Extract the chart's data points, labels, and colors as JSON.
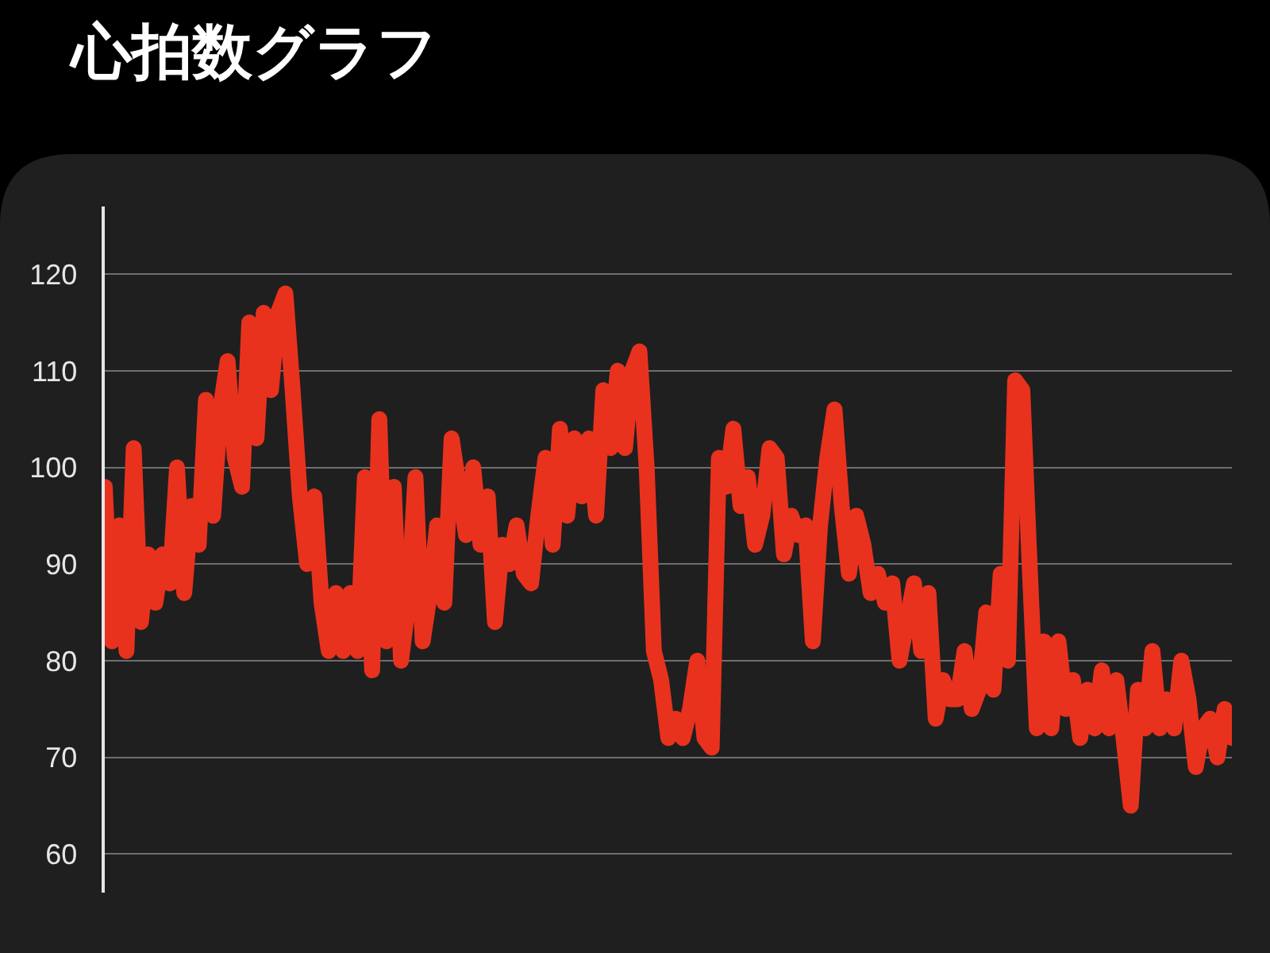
{
  "chart_data": {
    "type": "line",
    "title": "心拍数グラフ",
    "categories": [
      null,
      null,
      null,
      null,
      null,
      null,
      null,
      null,
      null,
      null,
      null,
      null,
      null,
      null,
      null,
      null,
      null,
      null,
      null,
      null,
      null,
      null,
      null,
      null,
      null,
      null,
      null,
      null,
      null,
      null,
      null,
      null,
      null,
      null,
      null,
      null,
      null,
      null,
      null,
      null,
      null,
      null,
      null,
      null,
      null,
      null,
      null,
      null,
      null,
      null,
      null,
      null,
      null,
      null,
      null,
      null,
      null,
      null,
      null,
      null,
      null,
      null,
      null,
      null,
      null,
      null,
      null,
      null,
      null,
      null,
      null,
      null,
      null,
      null,
      null,
      null,
      null,
      null,
      null,
      null,
      null,
      null,
      null,
      null,
      null,
      null,
      null,
      null,
      null,
      null,
      null,
      null,
      null,
      null,
      null,
      null,
      null,
      null,
      null,
      null,
      null,
      null,
      null,
      null,
      null,
      null,
      null,
      null,
      null,
      null,
      null,
      null,
      null,
      null,
      null,
      null,
      null,
      null,
      null,
      null,
      null,
      null,
      null,
      null,
      null,
      null,
      null,
      null,
      null,
      null,
      null,
      null,
      null,
      null,
      null,
      null,
      null,
      null,
      null,
      null,
      null,
      null,
      null,
      null,
      null,
      null,
      null,
      null,
      null,
      null,
      null,
      null,
      null,
      null,
      null,
      null,
      null
    ],
    "series": [
      {
        "color": "#e8321e",
        "values": [
          98,
          82,
          94,
          81,
          102,
          84,
          91,
          86,
          91,
          88,
          100,
          87,
          96,
          92,
          107,
          95,
          106,
          111,
          101,
          98,
          115,
          103,
          116,
          108,
          116,
          118,
          108,
          97,
          90,
          97,
          86,
          81,
          87,
          81,
          87,
          81,
          99,
          79,
          105,
          82,
          98,
          80,
          86,
          99,
          82,
          87,
          94,
          86,
          103,
          98,
          93,
          100,
          92,
          97,
          84,
          92,
          90,
          94,
          89,
          88,
          95,
          101,
          92,
          104,
          95,
          103,
          97,
          103,
          95,
          108,
          102,
          110,
          102,
          110,
          112,
          100,
          81,
          78,
          72,
          74,
          72,
          75,
          80,
          72,
          71,
          101,
          98,
          104,
          96,
          99,
          92,
          95,
          102,
          101,
          91,
          95,
          93,
          94,
          82,
          94,
          101,
          106,
          96,
          89,
          95,
          92,
          87,
          89,
          86,
          88,
          80,
          84,
          88,
          81,
          87,
          74,
          78,
          76,
          76,
          81,
          75,
          77,
          85,
          77,
          89,
          80,
          109,
          108,
          90,
          73,
          82,
          73,
          82,
          75,
          78,
          72,
          77,
          73,
          79,
          73,
          78,
          72,
          65,
          77,
          73,
          81,
          73,
          76,
          73,
          80,
          76,
          69,
          73,
          74,
          70,
          75,
          72
        ]
      }
    ],
    "ylim": [
      56,
      127
    ],
    "yticks": [
      60,
      70,
      80,
      90,
      100,
      110,
      120
    ],
    "grid": "y",
    "line_style": "solid"
  }
}
